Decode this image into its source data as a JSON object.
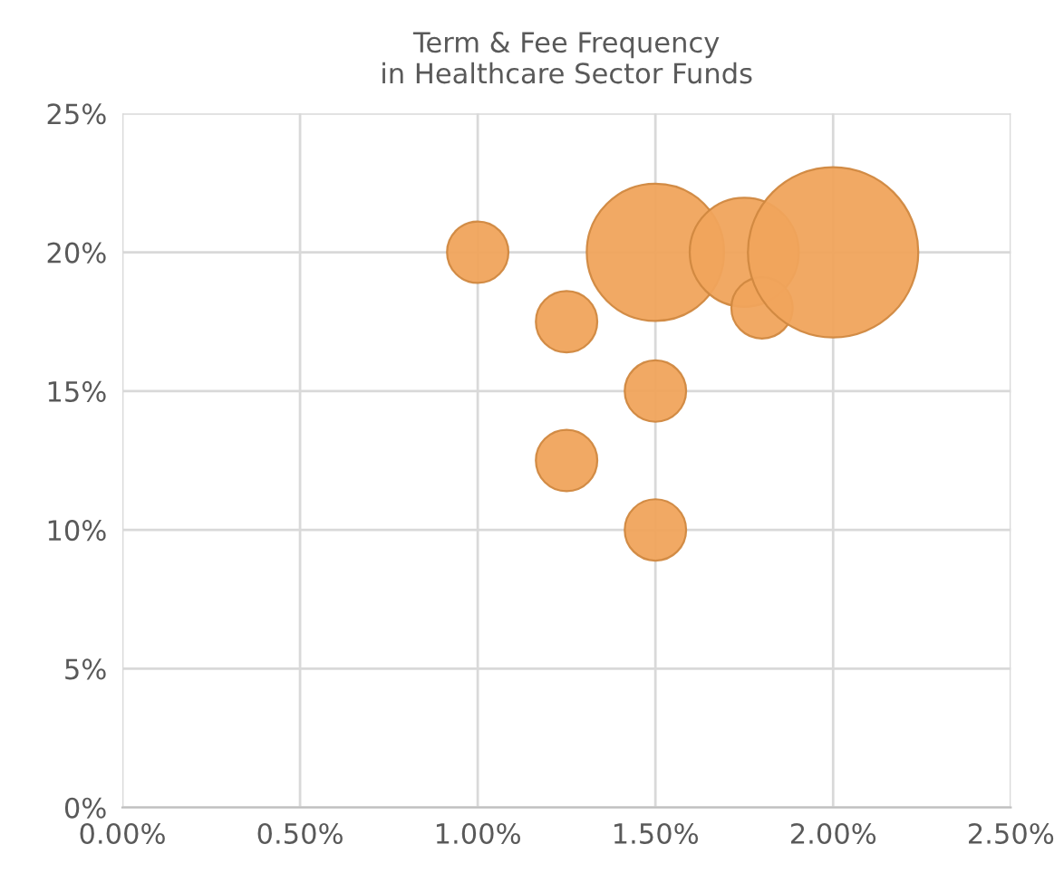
{
  "chart_data": {
    "type": "bubble",
    "title": "Term & Fee Frequency\nin Healthcare Sector Funds",
    "x": [
      1.0,
      1.25,
      1.25,
      1.5,
      1.5,
      1.5,
      1.75,
      1.8,
      2.0
    ],
    "values": [
      20,
      17.5,
      12.5,
      15,
      10,
      20,
      20,
      18,
      20
    ],
    "sizes": [
      0.13,
      0.13,
      0.13,
      0.13,
      0.13,
      0.65,
      0.41,
      0.13,
      1
    ],
    "color": "#f0a45c",
    "xlim": [
      0,
      2.5
    ],
    "xticks": [
      {
        "value": 0,
        "label": "0.00%"
      },
      {
        "value": 0.5,
        "label": "0.50%"
      },
      {
        "value": 1,
        "label": "1.00%"
      },
      {
        "value": 1.5,
        "label": "1.50%"
      },
      {
        "value": 2,
        "label": "2.00%"
      },
      {
        "value": 2.5,
        "label": "2.50%"
      }
    ],
    "ylim": [
      0,
      25
    ],
    "yticks": [
      {
        "value": 0,
        "label": "0%"
      },
      {
        "value": 5,
        "label": "5%"
      },
      {
        "value": 10,
        "label": "10%"
      },
      {
        "value": 15,
        "label": "15%"
      },
      {
        "value": 20,
        "label": "20%"
      },
      {
        "value": 25,
        "label": "25%"
      }
    ],
    "grid": true
  }
}
